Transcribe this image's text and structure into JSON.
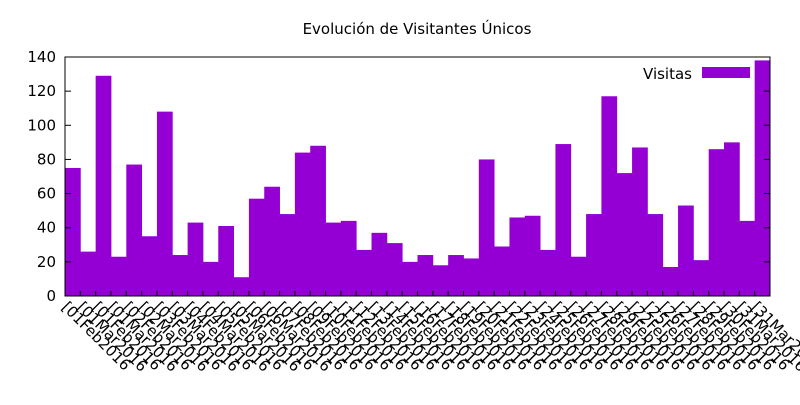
{
  "chart_data": {
    "type": "bar",
    "title": "Evolución de Visitantes Únicos",
    "xlabel": "",
    "ylabel": "",
    "ylim": [
      0,
      140
    ],
    "yticks": [
      0,
      20,
      40,
      60,
      80,
      100,
      120,
      140
    ],
    "grid": false,
    "legend_position": "top-right",
    "bar_color": "#9400d3",
    "series": [
      {
        "name": "Visitas",
        "values": [
          75,
          26,
          129,
          23,
          77,
          35,
          108,
          24,
          43,
          20,
          41,
          11,
          57,
          64,
          48,
          84,
          88,
          43,
          44,
          27,
          37,
          31,
          20,
          24,
          18,
          24,
          22,
          80,
          29,
          46,
          47,
          27,
          89,
          23,
          48,
          117,
          72,
          87,
          48,
          17,
          53,
          21,
          86,
          90,
          44,
          138
        ]
      }
    ],
    "categories": [
      "[01Feb2016",
      "[01Mar2016",
      "[01Feb2016",
      "[01Mar2016",
      "[02Feb2016",
      "[02Mar2016",
      "[03Feb2016",
      "[03Mar2016",
      "[04Feb2016",
      "[04Mar2016",
      "[05Feb2016",
      "[05Mar2016",
      "[06Feb2016",
      "[06Mar2016",
      "[07Feb2016",
      "[08Feb2016",
      "[09Feb2016",
      "[10Feb2016",
      "[11Feb2016",
      "[12Feb2016",
      "[13Feb2016",
      "[14Feb2016",
      "[15Feb2016",
      "[16Feb2016",
      "[17Feb2016",
      "[18Feb2016",
      "[19Feb2016",
      "[20Feb2016",
      "[21Feb2016",
      "[22Feb2016",
      "[23Feb2016",
      "[24Feb2016",
      "[25Feb2016",
      "[26Feb2016",
      "[27Feb2016",
      "[28Feb2016",
      "[29Feb2016",
      "[22Feb2016",
      "[25Feb2016",
      "[26Feb2016",
      "[27Feb2016",
      "[28Feb2016",
      "[29Feb2016",
      "[30Feb2016",
      "[31Mar2016",
      "[31Mar2016"
    ]
  }
}
